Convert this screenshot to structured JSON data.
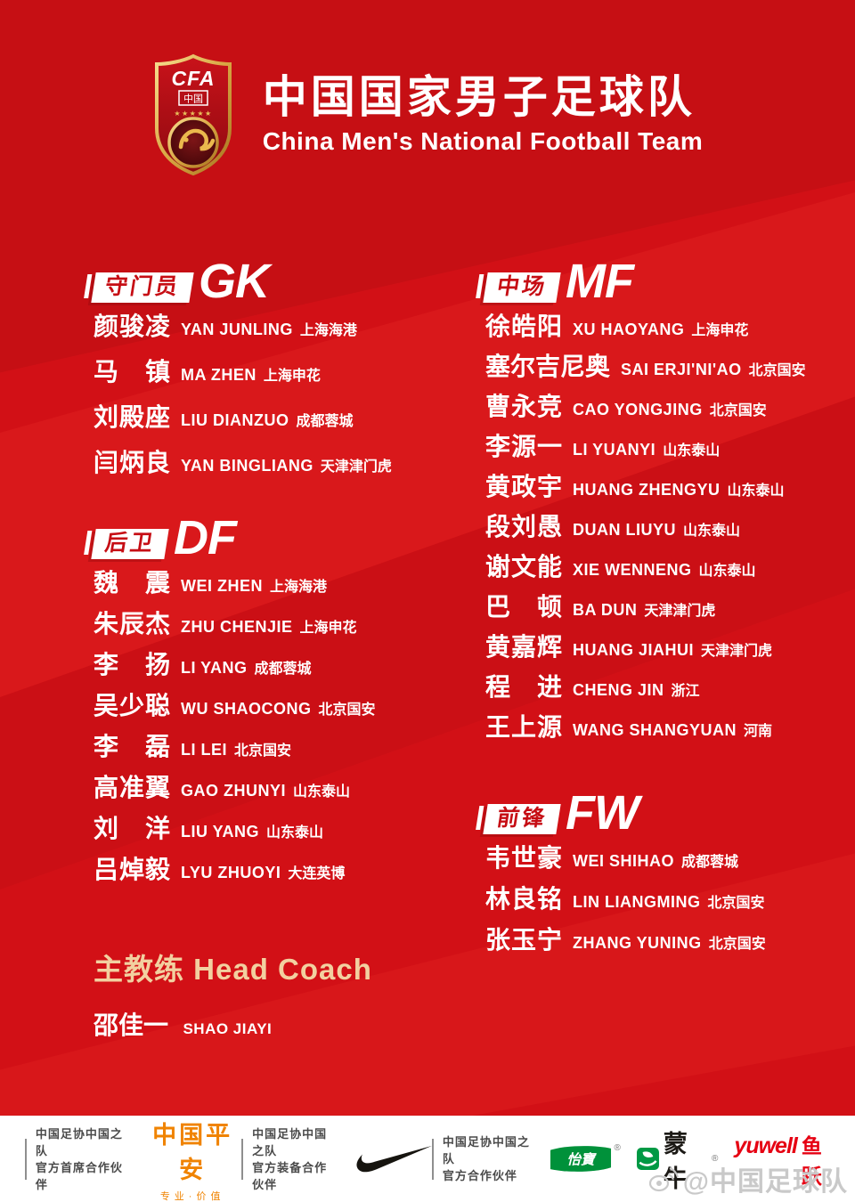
{
  "title": {
    "cn": "中国国家男子足球队",
    "en": "China Men's National Football Team"
  },
  "logo": {
    "acronym": "CFA",
    "country": "中国",
    "stars": "★★★★★"
  },
  "sections": [
    {
      "key": "gk",
      "label_cn": "守门员",
      "label_en": "GK",
      "players": [
        {
          "name": "颜骏凌",
          "pinyin": "YAN JUNLING",
          "club": "上海海港"
        },
        {
          "name": "马镇",
          "pinyin": "MA ZHEN",
          "club": "上海申花"
        },
        {
          "name": "刘殿座",
          "pinyin": "LIU DIANZUO",
          "club": "成都蓉城"
        },
        {
          "name": "闫炳良",
          "pinyin": "YAN BINGLIANG",
          "club": "天津津门虎"
        }
      ]
    },
    {
      "key": "df",
      "label_cn": "后卫",
      "label_en": "DF",
      "players": [
        {
          "name": "魏震",
          "pinyin": "WEI ZHEN",
          "club": "上海海港"
        },
        {
          "name": "朱辰杰",
          "pinyin": "ZHU CHENJIE",
          "club": "上海申花"
        },
        {
          "name": "李扬",
          "pinyin": "LI YANG",
          "club": "成都蓉城"
        },
        {
          "name": "吴少聪",
          "pinyin": "WU SHAOCONG",
          "club": "北京国安"
        },
        {
          "name": "李磊",
          "pinyin": "LI LEI",
          "club": "北京国安"
        },
        {
          "name": "高准翼",
          "pinyin": "GAO ZHUNYI",
          "club": "山东泰山"
        },
        {
          "name": "刘洋",
          "pinyin": "LIU YANG",
          "club": "山东泰山"
        },
        {
          "name": "吕焯毅",
          "pinyin": "LYU ZHUOYI",
          "club": "大连英博"
        }
      ]
    },
    {
      "key": "mf",
      "label_cn": "中场",
      "label_en": "MF",
      "players": [
        {
          "name": "徐皓阳",
          "pinyin": "XU HAOYANG",
          "club": "上海申花"
        },
        {
          "name": "塞尔吉尼奥",
          "pinyin": "SAI ERJI'NI'AO",
          "club": "北京国安"
        },
        {
          "name": "曹永竞",
          "pinyin": "CAO YONGJING",
          "club": "北京国安"
        },
        {
          "name": "李源一",
          "pinyin": "LI YUANYI",
          "club": "山东泰山"
        },
        {
          "name": "黄政宇",
          "pinyin": "HUANG ZHENGYU",
          "club": "山东泰山"
        },
        {
          "name": "段刘愚",
          "pinyin": "DUAN LIUYU",
          "club": "山东泰山"
        },
        {
          "name": "谢文能",
          "pinyin": "XIE WENNENG",
          "club": "山东泰山"
        },
        {
          "name": "巴顿",
          "pinyin": "BA DUN",
          "club": "天津津门虎"
        },
        {
          "name": "黄嘉辉",
          "pinyin": "HUANG JIAHUI",
          "club": "天津津门虎"
        },
        {
          "name": "程进",
          "pinyin": "CHENG JIN",
          "club": "浙江"
        },
        {
          "name": "王上源",
          "pinyin": "WANG SHANGYUAN",
          "club": "河南"
        }
      ]
    },
    {
      "key": "fw",
      "label_cn": "前锋",
      "label_en": "FW",
      "players": [
        {
          "name": "韦世豪",
          "pinyin": "WEI SHIHAO",
          "club": "成都蓉城"
        },
        {
          "name": "林良铭",
          "pinyin": "LIN LIANGMING",
          "club": "北京国安"
        },
        {
          "name": "张玉宁",
          "pinyin": "ZHANG YUNING",
          "club": "北京国安"
        }
      ]
    }
  ],
  "coach": {
    "label_cn": "主教练",
    "label_en": "Head Coach",
    "name": "邵佳一",
    "pinyin": "SHAO JIAYI"
  },
  "sponsors": {
    "groups": [
      {
        "line1": "中国足协中国之队",
        "line2": "官方首席合作伙伴"
      },
      {
        "line1": "中国足协中国之队",
        "line2": "官方装备合作伙伴"
      },
      {
        "line1": "中国足协中国之队",
        "line2": "官方合作伙伴"
      }
    ],
    "pingan": {
      "name": "中国平安",
      "tagline": "专业·价值"
    },
    "yibao": {
      "name": "怡寶",
      "reg": "®"
    },
    "mengniu": {
      "name": "蒙牛",
      "reg": "®"
    },
    "yuwell": {
      "latin": "yuwell",
      "cn": "鱼跃"
    }
  },
  "watermark": {
    "handle": "@中国足球队"
  },
  "colors": {
    "bg_red": "#d21016",
    "gold": "#f2d0a0",
    "pingan_orange": "#f08300",
    "yibao_green": "#00913a",
    "mengniu_green": "#009944",
    "yuwell_red": "#e60012"
  }
}
